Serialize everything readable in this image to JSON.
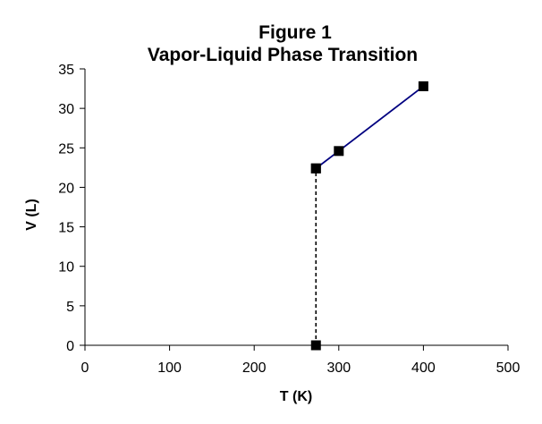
{
  "chart_data": {
    "type": "scatter",
    "title_lines": [
      "Figure 1",
      "Vapor-Liquid Phase Transition"
    ],
    "xlabel": "T (K)",
    "ylabel": "V (L)",
    "xlim": [
      0,
      500
    ],
    "ylim": [
      0,
      35
    ],
    "x_ticks": [
      0,
      100,
      200,
      300,
      400,
      500
    ],
    "y_ticks": [
      0,
      5,
      10,
      15,
      20,
      25,
      30,
      35
    ],
    "grid": false,
    "legend": "none",
    "series": [
      {
        "style": "solid",
        "color": "#000080",
        "marker": "square",
        "points": [
          {
            "x": 273,
            "y": 22.4
          },
          {
            "x": 300,
            "y": 24.6
          },
          {
            "x": 400,
            "y": 32.8
          }
        ]
      },
      {
        "style": "dashed",
        "color": "#000000",
        "marker": "square",
        "points": [
          {
            "x": 273,
            "y": 0
          },
          {
            "x": 273,
            "y": 22.4
          }
        ]
      }
    ]
  }
}
